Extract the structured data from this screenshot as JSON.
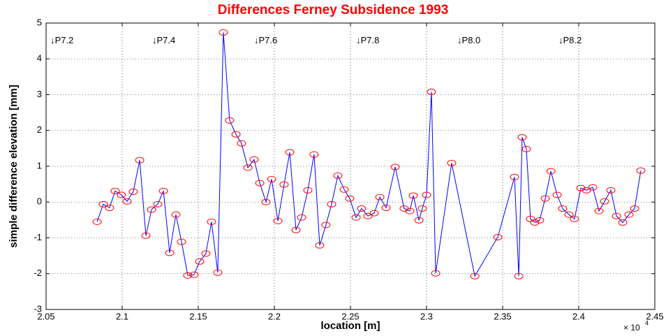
{
  "chart_data": {
    "type": "line",
    "title": "Differences Ferney Subsidence 1993",
    "x_label": "location [m]",
    "y_label": "simple difference elevation [mm]",
    "x_multiplier": "× 10",
    "x_multiplier_exponent": "4",
    "color": "#0000ff",
    "marker_color": "#ff0000",
    "grid": true,
    "xlim": [
      2.05,
      2.45
    ],
    "xticks": [
      2.05,
      2.1,
      2.15,
      2.2,
      2.25,
      2.3,
      2.35,
      2.4,
      2.45
    ],
    "ylim": [
      -3,
      5
    ],
    "yticks": [
      -3,
      -2,
      -1,
      0,
      1,
      2,
      3,
      4,
      5
    ],
    "annotations": [
      {
        "text": "↓P7.2",
        "x": 2.0528,
        "y": 4.5
      },
      {
        "text": "↓P7.4",
        "x": 2.1197,
        "y": 4.5
      },
      {
        "text": "↓P7.6",
        "x": 2.1867,
        "y": 4.5
      },
      {
        "text": "↓P7.8",
        "x": 2.2537,
        "y": 4.5
      },
      {
        "text": "↓P8.0",
        "x": 2.3202,
        "y": 4.5
      },
      {
        "text": "↓P8.2",
        "x": 2.3867,
        "y": 4.5
      }
    ],
    "x": [
      2.0835,
      2.0876,
      2.0917,
      2.0954,
      2.0995,
      2.1032,
      2.1073,
      2.1115,
      2.1156,
      2.1193,
      2.1234,
      2.1271,
      2.1312,
      2.1353,
      2.139,
      2.1431,
      2.1472,
      2.1509,
      2.155,
      2.1587,
      2.1628,
      2.1665,
      2.1706,
      2.1748,
      2.1784,
      2.1826,
      2.1867,
      2.1904,
      2.1945,
      2.1982,
      2.2023,
      2.2064,
      2.2101,
      2.2142,
      2.2179,
      2.222,
      2.2261,
      2.2298,
      2.2339,
      2.2376,
      2.2417,
      2.2459,
      2.2495,
      2.2537,
      2.2573,
      2.2615,
      2.2656,
      2.2693,
      2.2734,
      2.2794,
      2.2853,
      2.289,
      2.2913,
      2.295,
      2.2972,
      2.3,
      2.3032,
      2.306,
      2.3165,
      2.3317,
      2.3468,
      2.3578,
      2.3606,
      2.3628,
      2.3656,
      2.3683,
      2.3711,
      2.3743,
      2.378,
      2.3817,
      2.3858,
      2.3894,
      2.3936,
      2.3972,
      2.4014,
      2.405,
      2.4092,
      2.4133,
      2.417,
      2.4211,
      2.4248,
      2.4289,
      2.433,
      2.4367,
      2.4408
    ],
    "values": [
      -0.55,
      -0.06,
      -0.16,
      0.31,
      0.2,
      0.02,
      0.29,
      1.17,
      -0.94,
      -0.21,
      -0.06,
      0.31,
      -1.42,
      -0.35,
      -1.11,
      -2.05,
      -2.03,
      -1.66,
      -1.44,
      -0.55,
      -1.97,
      4.74,
      2.28,
      1.89,
      1.64,
      0.96,
      1.19,
      0.53,
      0.0,
      0.64,
      -0.53,
      0.49,
      1.39,
      -0.78,
      -0.43,
      0.33,
      1.33,
      -1.21,
      -0.64,
      -0.06,
      0.74,
      0.35,
      0.1,
      -0.43,
      -0.18,
      -0.39,
      -0.31,
      0.14,
      -0.16,
      0.98,
      -0.18,
      -0.25,
      0.18,
      -0.51,
      -0.18,
      0.2,
      3.08,
      -1.99,
      1.09,
      -2.07,
      -0.98,
      0.7,
      -2.07,
      1.81,
      1.48,
      -0.47,
      -0.57,
      -0.51,
      0.1,
      0.86,
      0.2,
      -0.18,
      -0.35,
      -0.47,
      0.39,
      0.33,
      0.41,
      -0.25,
      0.02,
      0.33,
      -0.39,
      -0.57,
      -0.35,
      -0.18,
      0.88
    ]
  }
}
